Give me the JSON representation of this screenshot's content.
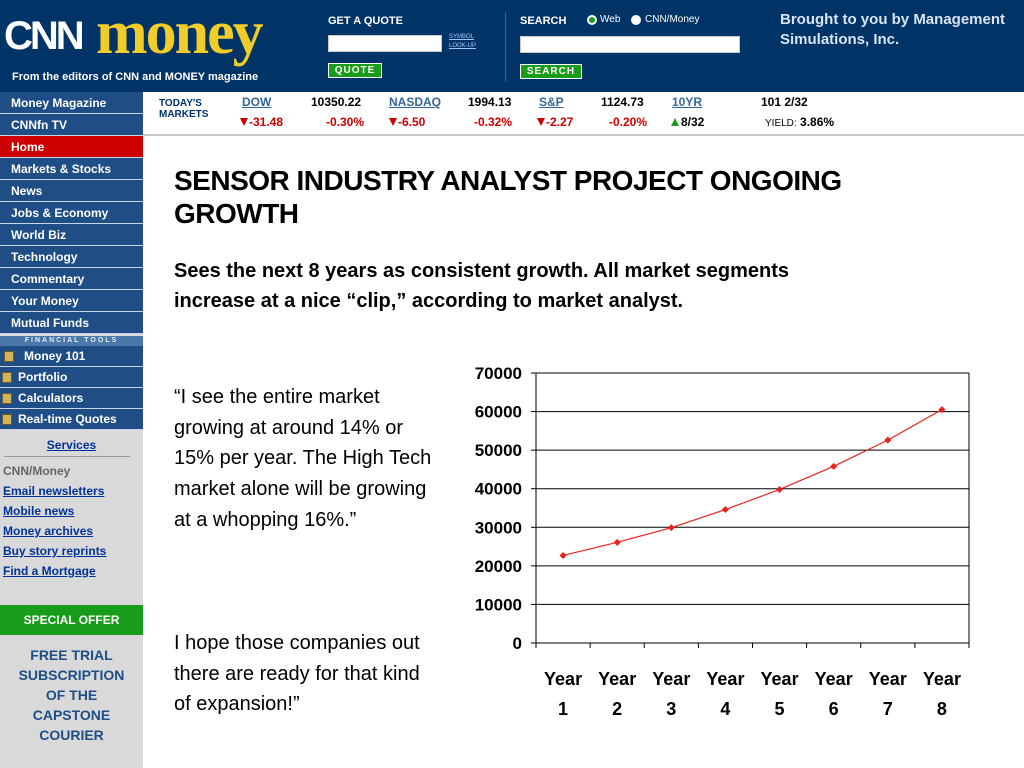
{
  "header": {
    "logo_cnn": "CNN",
    "logo_money": "money",
    "tagline": "From the editors of CNN and MONEY magazine",
    "get_quote_label": "GET A QUOTE",
    "symbol_lookup_line1": "SYMBOL",
    "symbol_lookup_line2": "LOOK-UP",
    "quote_button": "QUOTE",
    "search_label": "SEARCH",
    "search_option_web": "Web",
    "search_option_cnnmoney": "CNN/Money",
    "search_button": "SEARCH",
    "brought_to_you": "Brought to you by Management Simulations, Inc."
  },
  "market": {
    "label_line1": "TODAY'S",
    "label_line2": "MARKETS",
    "items": [
      {
        "name": "DOW",
        "value": "10350.22",
        "change": "-31.48",
        "pct": "-0.30%"
      },
      {
        "name": "NASDAQ",
        "value": "1994.13",
        "change": "-6.50",
        "pct": "-0.32%"
      },
      {
        "name": "S&P",
        "value": "1124.73",
        "change": "-2.27",
        "pct": "-0.20%"
      }
    ],
    "bond": {
      "name": "10YR",
      "value": "101 2/32",
      "change": "8/32",
      "yield_label": "YIELD:",
      "yield_value": "3.86%"
    }
  },
  "sidebar": {
    "nav": [
      "Money Magazine",
      "CNNfn TV",
      "Home",
      "Markets & Stocks",
      "News",
      "Jobs & Economy",
      "World Biz",
      "Technology",
      "Commentary",
      "Your Money",
      "Mutual Funds"
    ],
    "active": "Home",
    "financial_tools_label": "FINANCIAL TOOLS",
    "tools": [
      "Money 101",
      "Portfolio",
      "Calculators",
      "Real-time Quotes"
    ],
    "services_label": "Services",
    "cnnmoney_label": "CNN/Money",
    "service_links": [
      "Email newsletters",
      "Mobile news",
      "Money archives",
      "Buy story reprints",
      "Find a Mortgage"
    ],
    "special_offer": "SPECIAL OFFER",
    "trial_text": [
      "FREE TRIAL",
      "SUBSCRIPTION",
      "OF THE",
      "CAPSTONE",
      "COURIER"
    ]
  },
  "content": {
    "headline": "SENSOR INDUSTRY ANALYST PROJECT ONGOING GROWTH",
    "subhead": "Sees the next 8 years as consistent growth.  All market segments increase at a nice “clip,”  according to market analyst.",
    "quote1": "“I see the entire market growing at around 14% or 15% per year.  The High Tech market alone will be growing at a whopping 16%.”",
    "quote2": "I hope those companies out there are ready for that kind of expansion!”"
  },
  "chart_data": {
    "type": "line",
    "categories": [
      "Year 1",
      "Year 2",
      "Year 3",
      "Year 4",
      "Year 5",
      "Year 6",
      "Year 7",
      "Year 8"
    ],
    "series": [
      {
        "values": [
          22700,
          26100,
          29900,
          34600,
          39800,
          45800,
          52600,
          60500
        ],
        "color": "#e8231e"
      }
    ],
    "ylim": [
      0,
      70000
    ],
    "yticks": [
      0,
      10000,
      20000,
      30000,
      40000,
      50000,
      60000,
      70000
    ],
    "grid": true,
    "legend": "none",
    "title": "",
    "xlabel": "",
    "ylabel": ""
  }
}
